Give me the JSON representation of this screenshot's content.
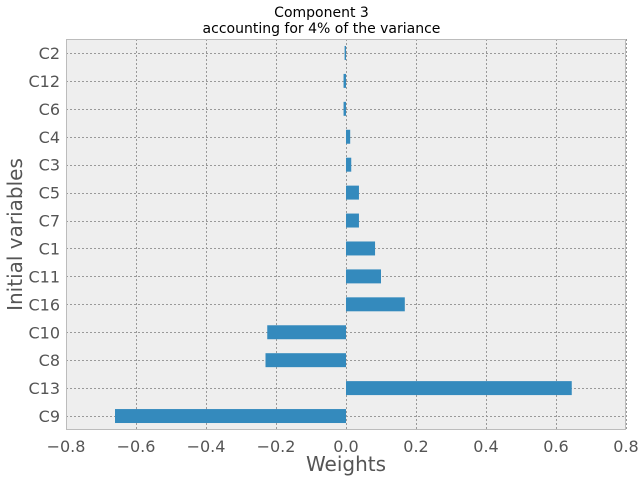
{
  "chart_data": {
    "type": "bar",
    "orientation": "horizontal",
    "title": "Component 3",
    "subtitle": "accounting for  4% of the variance",
    "xlabel": "Weights",
    "ylabel": "Initial variables",
    "xlim": [
      -0.8,
      0.8
    ],
    "xticks": [
      "−0.8",
      "−0.6",
      "−0.4",
      "−0.2",
      "0.0",
      "0.2",
      "0.4",
      "0.6",
      "0.8"
    ],
    "categories": [
      "C9",
      "C13",
      "C8",
      "C10",
      "C16",
      "C11",
      "C1",
      "C7",
      "C5",
      "C3",
      "C4",
      "C6",
      "C12",
      "C2"
    ],
    "values": [
      -0.66,
      0.645,
      -0.23,
      -0.225,
      0.168,
      0.1,
      0.083,
      0.037,
      0.037,
      0.015,
      0.012,
      -0.007,
      -0.007,
      -0.004
    ],
    "grid": true,
    "bar_color": "#348ABD",
    "background_color": "#EEEEEE"
  }
}
